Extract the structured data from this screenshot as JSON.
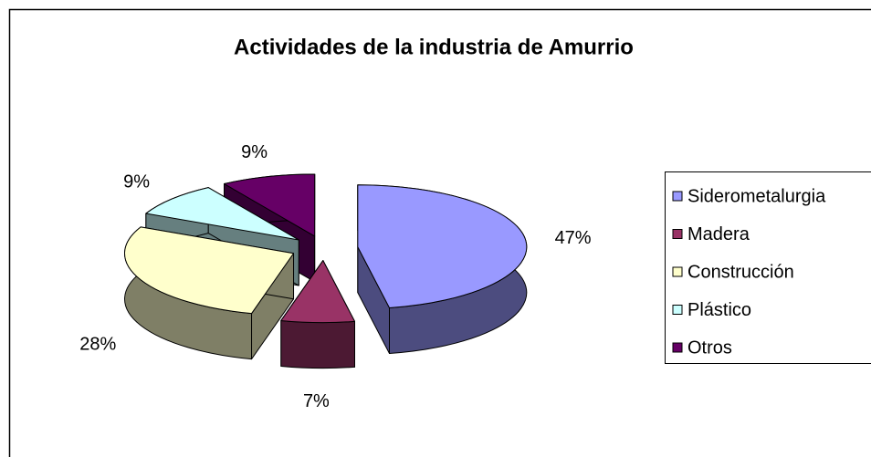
{
  "chart_data": {
    "type": "pie",
    "title": "Actividades de la industria de Amurrio",
    "categories": [
      "Siderometalurgia",
      "Madera",
      "Construcción",
      "Plástico",
      "Otros"
    ],
    "values": [
      47,
      7,
      28,
      9,
      9
    ],
    "value_labels": [
      "47%",
      "7%",
      "28%",
      "9%",
      "9%"
    ],
    "colors": [
      "#9999ff",
      "#993366",
      "#ffffcc",
      "#ccffff",
      "#660066"
    ],
    "legend": "right"
  }
}
